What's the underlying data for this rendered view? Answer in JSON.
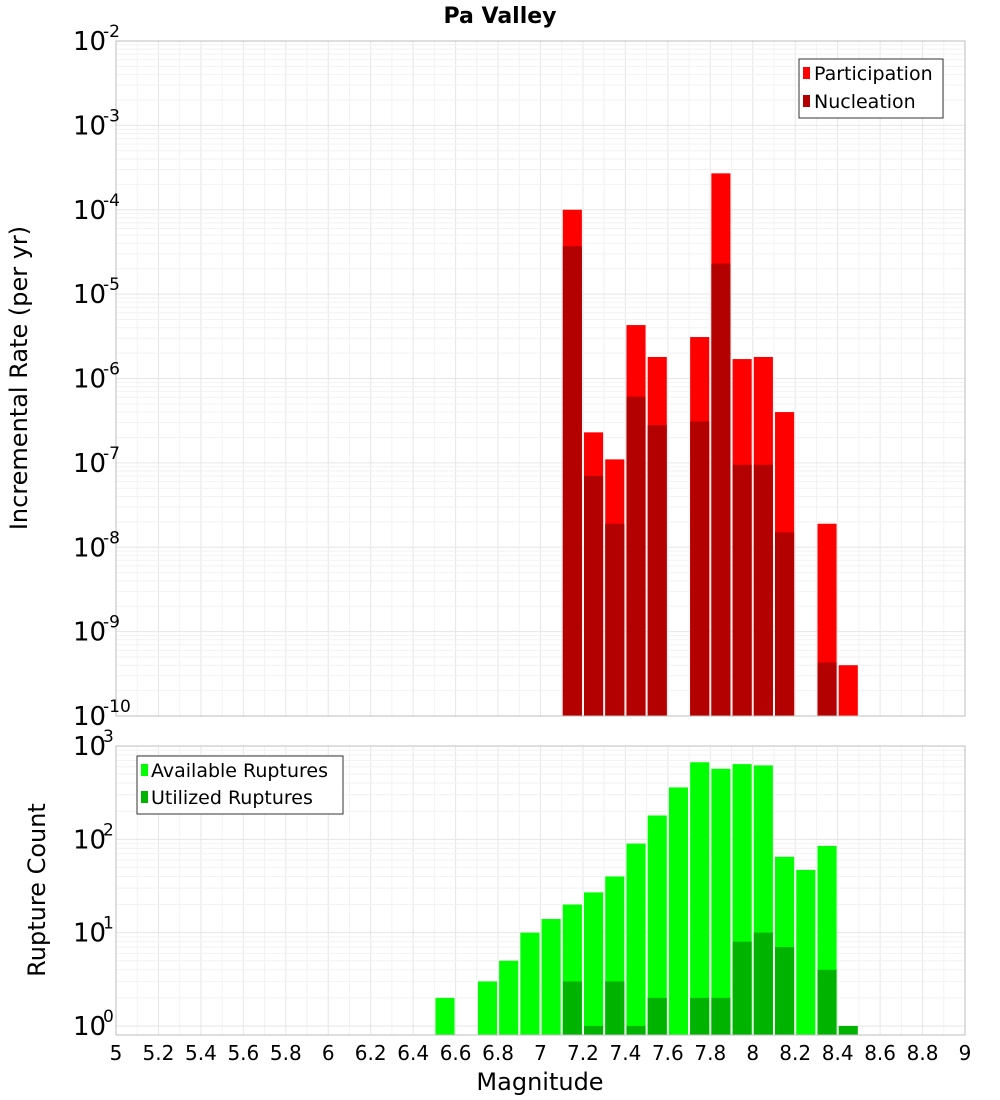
{
  "chart_data": [
    {
      "type": "bar",
      "title": "Pa Valley",
      "ylabel": "Incremental Rate (per yr)",
      "xlabel": "",
      "y_scale": "log",
      "ylim": [
        1e-10,
        0.01
      ],
      "xlim": [
        5,
        9
      ],
      "grid": true,
      "legend_position": "top-right",
      "series": [
        {
          "name": "Participation",
          "color": "#ff0000",
          "x": [
            7.15,
            7.25,
            7.35,
            7.45,
            7.55,
            7.75,
            7.85,
            7.95,
            8.05,
            8.15,
            8.35,
            8.45
          ],
          "values": [
            0.0001,
            2.3e-07,
            1.1e-07,
            4.3e-06,
            1.8e-06,
            3.1e-06,
            0.00027,
            1.7e-06,
            1.8e-06,
            4e-07,
            1.9e-08,
            4e-10
          ]
        },
        {
          "name": "Nucleation",
          "color": "#b30000",
          "x": [
            7.15,
            7.25,
            7.35,
            7.45,
            7.55,
            7.75,
            7.85,
            7.95,
            8.05,
            8.15,
            8.35
          ],
          "values": [
            3.7e-05,
            7e-08,
            1.9e-08,
            6.1e-07,
            2.8e-07,
            3.1e-07,
            2.3e-05,
            9.5e-08,
            9.5e-08,
            1.5e-08,
            4.3e-10
          ]
        }
      ]
    },
    {
      "type": "bar",
      "title": "",
      "ylabel": "Rupture Count",
      "xlabel": "Magnitude",
      "y_scale": "log",
      "ylim": [
        0.8,
        1000
      ],
      "xlim": [
        5,
        9
      ],
      "grid": true,
      "legend_position": "top-left",
      "x_ticks": [
        "5",
        "5.2",
        "5.4",
        "5.6",
        "5.8",
        "6",
        "6.2",
        "6.4",
        "6.6",
        "6.8",
        "7",
        "7.2",
        "7.4",
        "7.6",
        "7.8",
        "8",
        "8.2",
        "8.4",
        "8.6",
        "8.8",
        "9"
      ],
      "series": [
        {
          "name": "Available Ruptures",
          "color": "#00ff00",
          "x": [
            6.55,
            6.75,
            6.85,
            6.95,
            7.05,
            7.15,
            7.25,
            7.35,
            7.45,
            7.55,
            7.65,
            7.75,
            7.85,
            7.95,
            8.05,
            8.15,
            8.25,
            8.35
          ],
          "values": [
            2,
            3,
            5,
            10,
            14,
            20,
            27,
            40,
            90,
            180,
            360,
            670,
            570,
            640,
            620,
            65,
            47,
            85
          ]
        },
        {
          "name": "Utilized Ruptures",
          "color": "#00b300",
          "x": [
            7.15,
            7.25,
            7.35,
            7.45,
            7.55,
            7.75,
            7.85,
            7.95,
            8.05,
            8.15,
            8.35,
            8.45
          ],
          "values": [
            3,
            1,
            3,
            1,
            2,
            2,
            2,
            8,
            10,
            7,
            4,
            1
          ]
        }
      ]
    }
  ]
}
